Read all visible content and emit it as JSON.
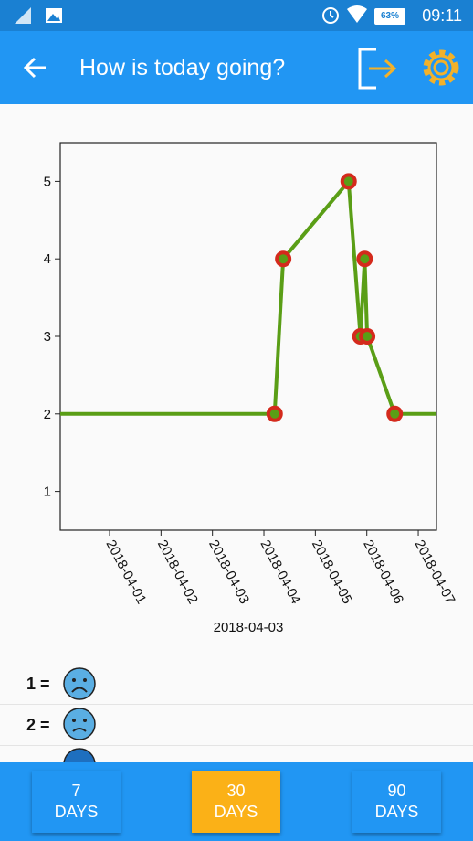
{
  "status_bar": {
    "battery": "63%",
    "time": "09:11"
  },
  "app_bar": {
    "title": "How is today going?"
  },
  "chart_data": {
    "type": "line",
    "x": [
      "2018-03-30 00:00",
      "2018-04-04 05:00",
      "2018-04-04 09:00",
      "2018-04-05 15:30",
      "2018-04-05 21:00",
      "2018-04-05 23:00",
      "2018-04-06 00:10",
      "2018-04-06 13:00",
      "2018-04-08 00:00"
    ],
    "series": [
      {
        "color": "#5a9e16",
        "marker_color": "#d42a1c",
        "values": [
          2,
          2,
          4,
          5,
          3,
          4,
          3,
          2,
          2
        ]
      }
    ],
    "xlim": [
      "2018-03-31 01:00",
      "2018-04-07 08:30"
    ],
    "xticks": [
      "2018-04-01",
      "2018-04-02",
      "2018-04-03",
      "2018-04-04",
      "2018-04-05",
      "2018-04-06",
      "2018-04-07"
    ],
    "xlabel": "2018-04-03",
    "ylim": [
      0.5,
      5.5
    ],
    "yticks": [
      1,
      2,
      3,
      4,
      5
    ]
  },
  "legend": [
    {
      "label": "1 ="
    },
    {
      "label": "2 ="
    }
  ],
  "buttons": [
    "7 DAYS",
    "30 DAYS",
    "90 DAYS"
  ]
}
